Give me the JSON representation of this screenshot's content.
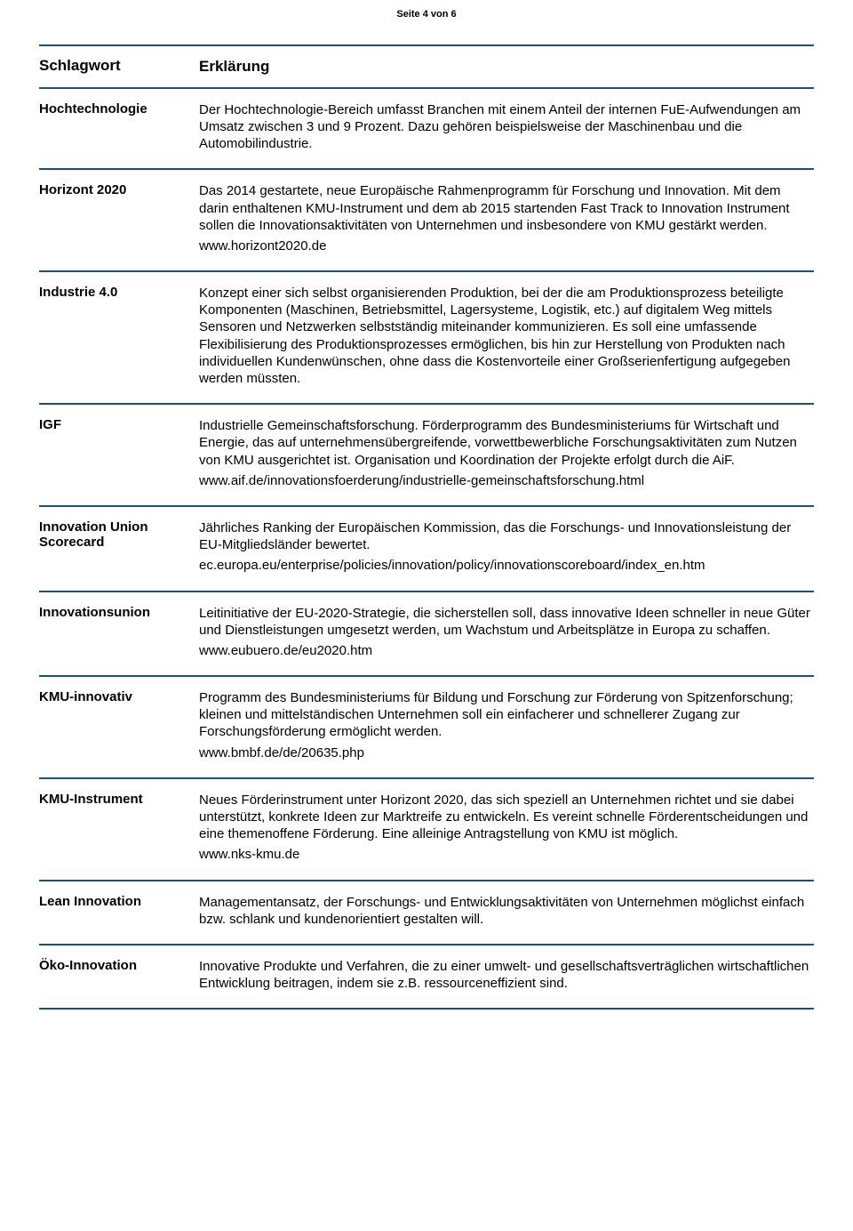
{
  "colors": {
    "rule": "#1f4e79",
    "text": "#000000",
    "background": "#ffffff"
  },
  "pageNumber": "Seite 4 von 6",
  "header": {
    "term": "Schlagwort",
    "desc": "Erklärung"
  },
  "entries": [
    {
      "term": "Hochtechnologie",
      "paragraphs": [
        "Der Hochtechnologie-Bereich umfasst Branchen mit einem Anteil der internen FuE-Aufwendungen am Umsatz zwischen 3 und 9 Prozent. Dazu gehören beispielsweise der Maschinenbau und die Automobilindustrie."
      ],
      "link": ""
    },
    {
      "term": "Horizont 2020",
      "paragraphs": [
        "Das 2014 gestartete, neue Europäische Rahmenprogramm für Forschung und Innovation. Mit dem darin enthaltenen KMU-Instrument und dem ab 2015 startenden Fast Track to Innovation Instrument sollen die Innovationsaktivitäten von Unternehmen und insbesondere von KMU gestärkt werden."
      ],
      "link": "www.horizont2020.de"
    },
    {
      "term": "Industrie 4.0",
      "paragraphs": [
        "Konzept einer sich selbst organisierenden Produktion, bei der die am Produktionsprozess beteiligte Komponenten (Maschinen, Betriebsmittel, Lagersysteme, Logistik, etc.) auf digitalem Weg mittels Sensoren und Netzwerken selbstständig miteinander kommunizieren. Es soll eine umfassende Flexibilisierung des Produktionsprozesses ermöglichen, bis hin zur Herstellung von Produkten nach individuellen Kundenwünschen, ohne dass die Kostenvorteile einer Großserienfertigung aufgegeben werden müssten."
      ],
      "link": ""
    },
    {
      "term": "IGF",
      "paragraphs": [
        "Industrielle Gemeinschaftsforschung. Förderprogramm des Bundesministeriums für Wirtschaft und Energie, das auf unternehmensübergreifende, vorwettbewerbliche Forschungsaktivitäten zum Nutzen von KMU ausgerichtet ist. Organisation und Koordination der Projekte erfolgt durch die AiF."
      ],
      "link": "www.aif.de/innovationsfoerderung/industrielle-gemeinschaftsforschung.html"
    },
    {
      "term": "Innovation Union Scorecard",
      "paragraphs": [
        "Jährliches Ranking der Europäischen Kommission, das die Forschungs- und Innovationsleistung der EU-Mitgliedsländer bewertet."
      ],
      "link": "ec.europa.eu/enterprise/policies/innovation/policy/innovationscoreboard/index_en.htm"
    },
    {
      "term": "Innovationsunion",
      "paragraphs": [
        "Leitinitiative der EU-2020-Strategie, die sicherstellen soll, dass innovative Ideen schneller in neue Güter und Dienstleistungen umgesetzt werden, um Wachstum und Arbeitsplätze in Europa zu schaffen."
      ],
      "link": "www.eubuero.de/eu2020.htm"
    },
    {
      "term": "KMU-innovativ",
      "paragraphs": [
        "Programm des Bundesministeriums für Bildung und Forschung zur Förderung von Spitzenforschung; kleinen und mittelständischen Unternehmen soll ein einfacherer und schnellerer Zugang zur Forschungsförderung ermöglicht werden."
      ],
      "link": "www.bmbf.de/de/20635.php"
    },
    {
      "term": "KMU-Instrument",
      "paragraphs": [
        "Neues Förderinstrument unter Horizont 2020, das sich speziell an Unternehmen richtet und sie dabei unterstützt, konkrete Ideen zur Marktreife zu entwickeln. Es vereint schnelle Förderentscheidungen und eine themenoffene Förderung. Eine alleinige Antragstellung von KMU ist möglich."
      ],
      "link": "www.nks-kmu.de"
    },
    {
      "term": "Lean Innovation",
      "paragraphs": [
        "Managementansatz, der Forschungs- und Entwicklungsaktivitäten von Unternehmen möglichst einfach bzw. schlank und kundenorientiert gestalten will."
      ],
      "link": ""
    },
    {
      "term": "Öko-Innovation",
      "paragraphs": [
        "Innovative Produkte und Verfahren, die zu einer umwelt- und gesellschaftsverträglichen wirtschaftlichen Entwicklung beitragen, indem sie z.B. ressourceneffizient sind."
      ],
      "link": ""
    }
  ]
}
